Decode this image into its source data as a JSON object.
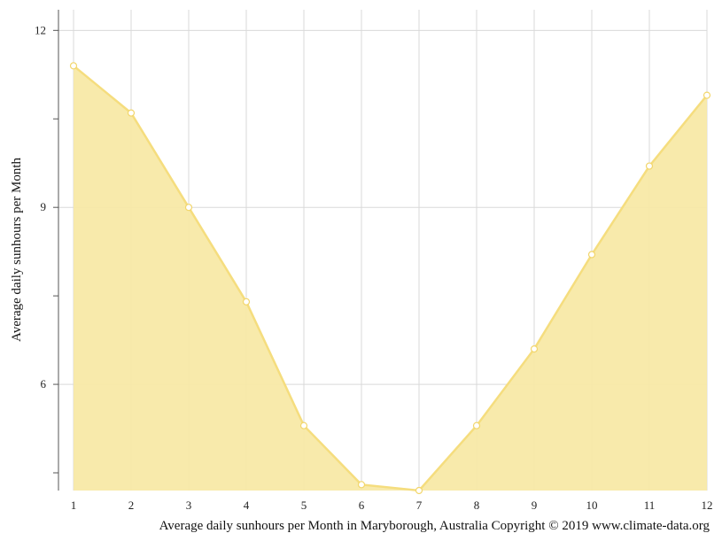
{
  "chart_data": {
    "type": "area",
    "x": [
      1,
      2,
      3,
      4,
      5,
      6,
      7,
      8,
      9,
      10,
      11,
      12
    ],
    "series": [
      {
        "values": [
          11.4,
          10.6,
          9.0,
          7.4,
          5.3,
          4.3,
          4.2,
          5.3,
          6.6,
          8.2,
          9.7,
          10.9
        ]
      }
    ],
    "xlabel": "Average daily sunhours per Month in Maryborough, Australia Copyright © 2019 www.climate-data.org",
    "ylabel": "Average daily sunhours per Month",
    "y_tick_labels": [
      6,
      9,
      12
    ],
    "x_tick_labels": [
      1,
      2,
      3,
      4,
      5,
      6,
      7,
      8,
      9,
      10,
      11,
      12
    ],
    "ylim": [
      4.2,
      12.35
    ],
    "grid": true,
    "colors": {
      "fill": "#f8e9a6",
      "line": "#f5dd7e",
      "marker_stroke": "#f2d66c",
      "marker_fill": "#ffffff"
    }
  }
}
